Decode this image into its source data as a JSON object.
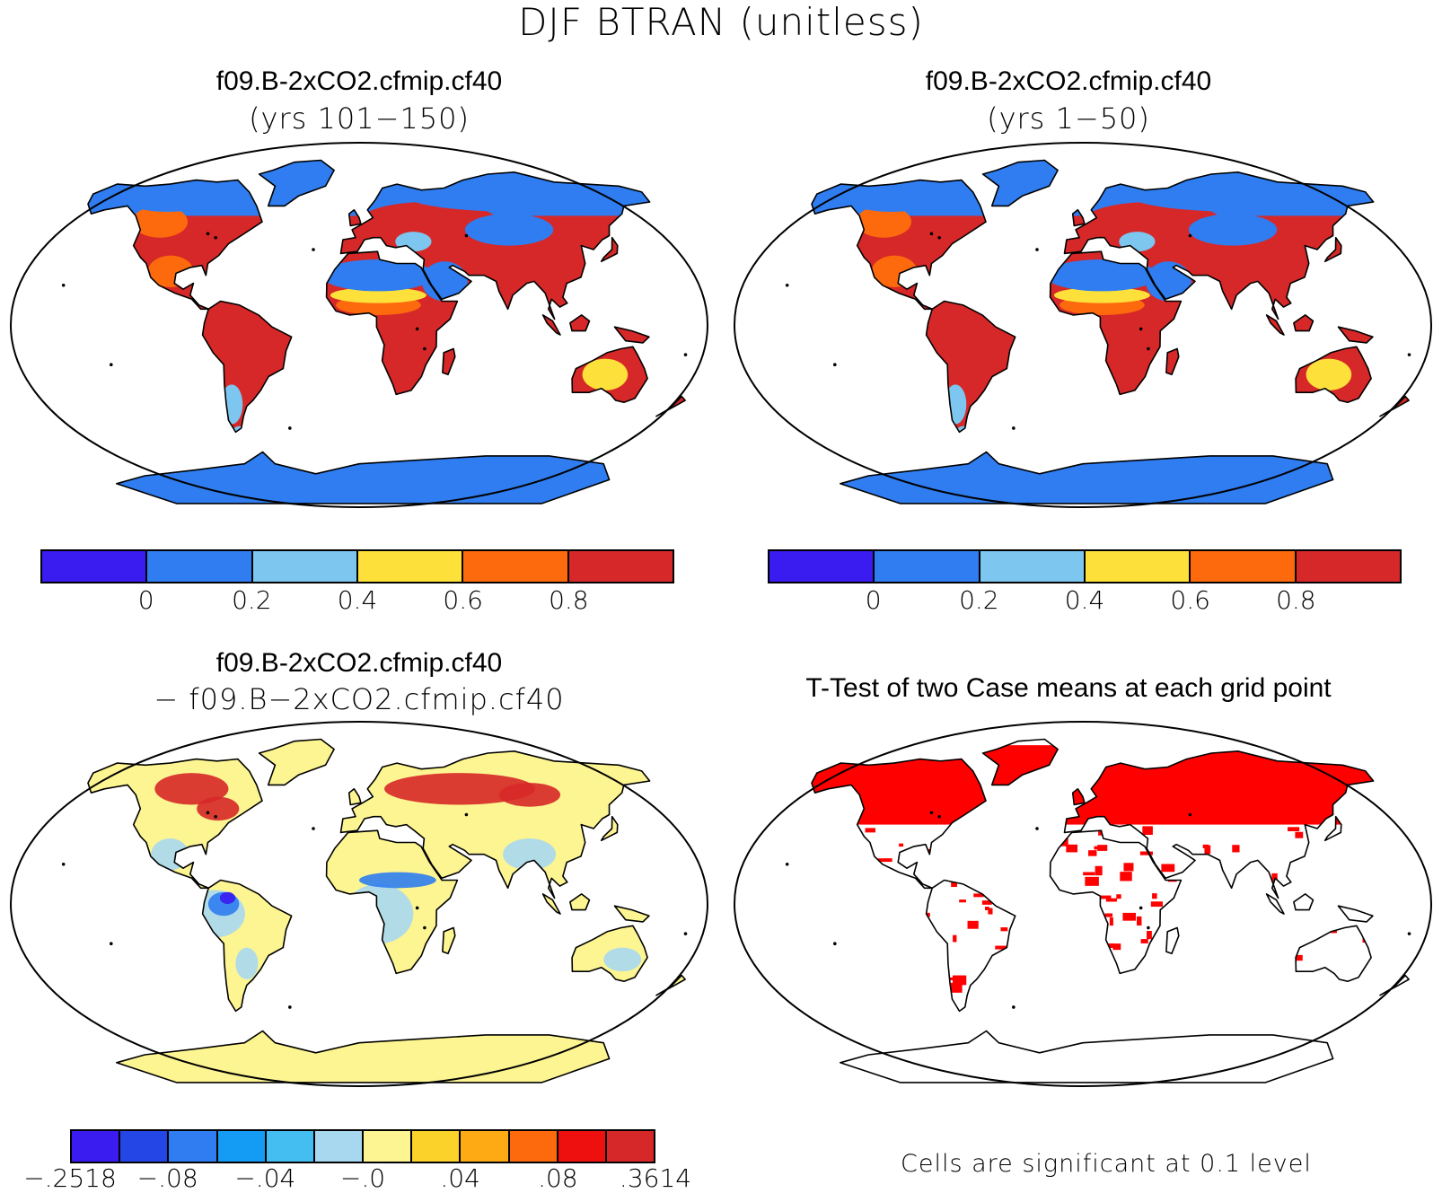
{
  "main_title": "DJF BTRAN (unitless)",
  "panels": [
    {
      "title": "f09.B-2xCO2.cfmip.cf40",
      "subtitle": "(yrs 101−150)"
    },
    {
      "title": "f09.B-2xCO2.cfmip.cf40",
      "subtitle": "(yrs 1−50)"
    },
    {
      "title": "f09.B-2xCO2.cfmip.cf40",
      "subtitle": "− f09.B−2xCO2.cfmip.cf40"
    },
    {
      "title": "T-Test of two Case means at each grid point",
      "subtitle": ""
    }
  ],
  "colorbar_main": {
    "colors": [
      "#3a1cf0",
      "#2f7df0",
      "#7cc6f0",
      "#fde13a",
      "#fd6a0d",
      "#d62828"
    ],
    "labels": [
      "0",
      "0.2",
      "0.4",
      "0.6",
      "0.8"
    ]
  },
  "colorbar_diff": {
    "colors": [
      "#3a1cf0",
      "#2446e6",
      "#2f7df0",
      "#149cf5",
      "#44bdf0",
      "#a8d8f0",
      "#fdf592",
      "#fbd22a",
      "#fdaa14",
      "#fd6a0d",
      "#ee0f0f",
      "#d62828"
    ],
    "labels": [
      "−.2518",
      "−.08",
      "−.04",
      "−.0",
      ".04",
      ".08",
      ".3614"
    ]
  },
  "significance_note": "Cells are significant at 0.1 level",
  "map_colors": {
    "land_dry": "#2f7df0",
    "land_mid": "#7cc6f0",
    "land_yellow": "#fde13a",
    "land_orange": "#fd6a0d",
    "land_wet": "#d62828",
    "diff_base": "#fdf592",
    "diff_light_blue": "#a8d8f0",
    "diff_blue": "#2f7df0",
    "diff_purple": "#3a1cf0",
    "diff_red": "#d62828",
    "ttest_red": "#ff0000"
  }
}
